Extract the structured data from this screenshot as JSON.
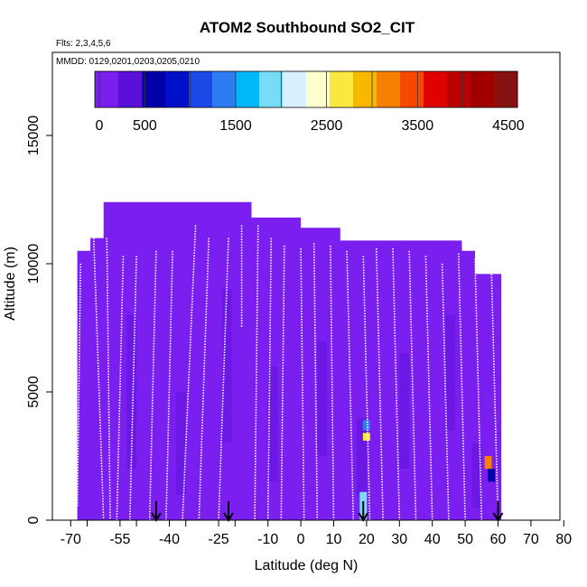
{
  "chart_data": {
    "type": "heatmap",
    "title": "ATOM2 Southbound SO2_CIT",
    "annotations": {
      "flights": "Flts: 2,3,4,5,6",
      "dates": "MMDD: 0129,0201,0203,0205,0210"
    },
    "xlabel": "Latitude (deg N)",
    "ylabel": "Altitude (m)",
    "xlim": [
      -70,
      85
    ],
    "ylim": [
      0,
      17500
    ],
    "x_ticks": [
      -70,
      -65,
      -55,
      -50,
      -40,
      -35,
      -25,
      -20,
      -10,
      0,
      10,
      20,
      30,
      40,
      50,
      60,
      70,
      80
    ],
    "x_tick_labels": [
      "-70",
      "-55",
      "-40",
      "-25",
      "-10",
      "0",
      "10",
      "20",
      "30",
      "40",
      "50",
      "60",
      "70",
      "80"
    ],
    "y_ticks": [
      0,
      5000,
      10000,
      15000
    ],
    "y_tick_labels": [
      "0",
      "5000",
      "10000",
      "15000"
    ],
    "colorbar": {
      "range": [
        -50,
        4600
      ],
      "tick_values": [
        0,
        500,
        1500,
        2500,
        3500,
        4500
      ],
      "tick_labels": [
        "0",
        "500",
        "1500",
        "2500",
        "3500",
        "4500"
      ],
      "divider_values": [
        0,
        500,
        1000,
        1500,
        2000,
        2500,
        3000,
        3500,
        4000,
        4500
      ],
      "colors": [
        "#7a1ff0",
        "#5a10d8",
        "#0000a8",
        "#0010c8",
        "#1a4ae8",
        "#2e7cf4",
        "#00b8f8",
        "#78dcf8",
        "#d8f0ff",
        "#ffffd0",
        "#f8e840",
        "#f8b800",
        "#f88000",
        "#f84800",
        "#e00000",
        "#b80000",
        "#a00000",
        "#8a1010"
      ]
    },
    "background_value": 150,
    "hotspots": [
      {
        "lat": 19.0,
        "alt_min": 0,
        "alt_max": 1100,
        "value": 1900
      },
      {
        "lat": 20.0,
        "alt_min": 3100,
        "alt_max": 3400,
        "value": 2600
      },
      {
        "lat": 20.0,
        "alt_min": 3500,
        "alt_max": 3900,
        "value": 1300
      },
      {
        "lat": 57.0,
        "alt_min": 2000,
        "alt_max": 2500,
        "value": 3200
      },
      {
        "lat": 58.0,
        "alt_min": 1500,
        "alt_max": 2000,
        "value": 600
      }
    ],
    "flight_profiles": [
      {
        "lat_top": -67,
        "alt_top": 10000,
        "lat_bot": -68,
        "alt_bot": 500
      },
      {
        "lat_top": -63,
        "alt_top": 11000,
        "lat_bot": -60,
        "alt_bot": 0
      },
      {
        "lat_top": -59,
        "alt_top": 11000,
        "lat_bot": -58,
        "alt_bot": 0
      },
      {
        "lat_top": -54,
        "alt_top": 10300,
        "lat_bot": -56,
        "alt_bot": 0
      },
      {
        "lat_top": -50,
        "alt_top": 10300,
        "lat_bot": -52,
        "alt_bot": 0
      },
      {
        "lat_top": -44,
        "alt_top": 10500,
        "lat_bot": -46,
        "alt_bot": 0
      },
      {
        "lat_top": -39,
        "alt_top": 10500,
        "lat_bot": -41,
        "alt_bot": 0
      },
      {
        "lat_top": -32,
        "alt_top": 11500,
        "lat_bot": -36,
        "alt_bot": 0
      },
      {
        "lat_top": -28,
        "alt_top": 11000,
        "lat_bot": -31,
        "alt_bot": 0
      },
      {
        "lat_top": -22,
        "alt_top": 11000,
        "lat_bot": -25,
        "alt_bot": 0
      },
      {
        "lat_top": -18,
        "alt_top": 11500,
        "lat_bot": -18,
        "alt_bot": 7500
      },
      {
        "lat_top": -13,
        "alt_top": 11500,
        "lat_bot": -14,
        "alt_bot": 0
      },
      {
        "lat_top": -9,
        "alt_top": 11000,
        "lat_bot": -10,
        "alt_bot": 0
      },
      {
        "lat_top": -5,
        "alt_top": 10700,
        "lat_bot": -6,
        "alt_bot": 0
      },
      {
        "lat_top": 0,
        "alt_top": 10600,
        "lat_bot": 1,
        "alt_bot": 0
      },
      {
        "lat_top": 4,
        "alt_top": 10800,
        "lat_bot": 5,
        "alt_bot": 0
      },
      {
        "lat_top": 9,
        "alt_top": 10700,
        "lat_bot": 10,
        "alt_bot": 0
      },
      {
        "lat_top": 14,
        "alt_top": 10500,
        "lat_bot": 16,
        "alt_bot": 0
      },
      {
        "lat_top": 19,
        "alt_top": 10300,
        "lat_bot": 21,
        "alt_bot": 0
      },
      {
        "lat_top": 23,
        "alt_top": 10600,
        "lat_bot": 25,
        "alt_bot": 0
      },
      {
        "lat_top": 28,
        "alt_top": 10600,
        "lat_bot": 30,
        "alt_bot": 0
      },
      {
        "lat_top": 33,
        "alt_top": 10500,
        "lat_bot": 35,
        "alt_bot": 0
      },
      {
        "lat_top": 38,
        "alt_top": 10300,
        "lat_bot": 40,
        "alt_bot": 0
      },
      {
        "lat_top": 43,
        "alt_top": 10000,
        "lat_bot": 45,
        "alt_bot": 0
      },
      {
        "lat_top": 48,
        "alt_top": 10400,
        "lat_bot": 50,
        "alt_bot": 0
      },
      {
        "lat_top": 53,
        "alt_top": 10200,
        "lat_bot": 55,
        "alt_bot": 0
      },
      {
        "lat_top": 58,
        "alt_top": 9700,
        "lat_bot": 60,
        "alt_bot": 0
      }
    ],
    "arrows_lat": [
      -44,
      -22,
      19,
      60
    ],
    "grid": false,
    "legend_position": "top"
  }
}
